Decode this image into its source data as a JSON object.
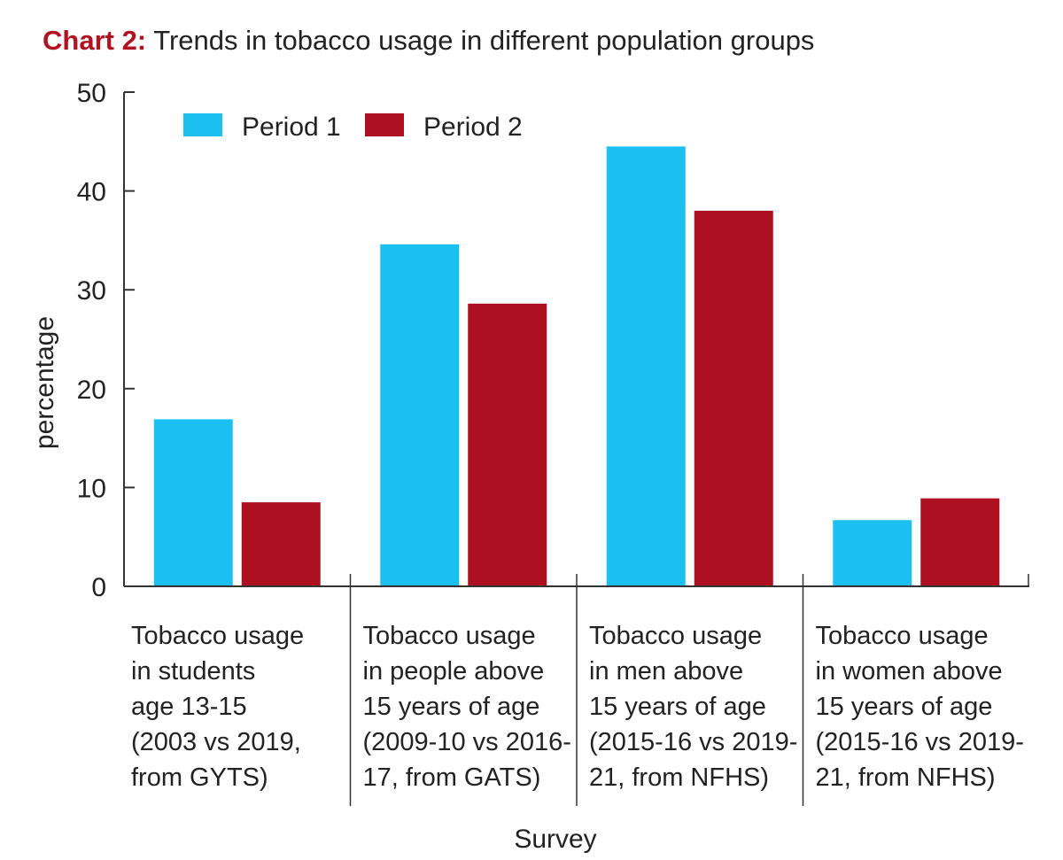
{
  "header": {
    "prefix": "Chart 2:",
    "text": "Trends in tobacco usage in different population groups"
  },
  "colors": {
    "accent": "#b01423",
    "period1": "#1bbff0",
    "period2": "#ad1020",
    "axis": "#333333"
  },
  "chart_data": {
    "type": "bar",
    "title": "Chart 2: Trends in tobacco usage in different population groups",
    "xlabel": "Survey",
    "ylabel": "percentage",
    "ylim": [
      0,
      50
    ],
    "yticks": [
      0,
      10,
      20,
      30,
      40,
      50
    ],
    "legend_position": "top-left",
    "grid": false,
    "categories": [
      [
        "Tobacco usage",
        "in students",
        "age 13-15",
        "(2003 vs 2019,",
        "from GYTS)"
      ],
      [
        "Tobacco usage",
        "in people above",
        "15 years of age",
        "(2009-10 vs 2016-",
        "17, from GATS)"
      ],
      [
        "Tobacco usage",
        "in men above",
        "15 years of age",
        "(2015-16 vs 2019-",
        "21, from NFHS)"
      ],
      [
        "Tobacco usage",
        "in women above",
        "15 years of age",
        "(2015-16 vs 2019-",
        "21, from NFHS)"
      ]
    ],
    "series": [
      {
        "name": "Period 1",
        "color": "#1bbff0",
        "values": [
          16.9,
          34.6,
          44.5,
          6.7
        ]
      },
      {
        "name": "Period 2",
        "color": "#ad1020",
        "values": [
          8.5,
          28.6,
          38.0,
          8.9
        ]
      }
    ]
  }
}
